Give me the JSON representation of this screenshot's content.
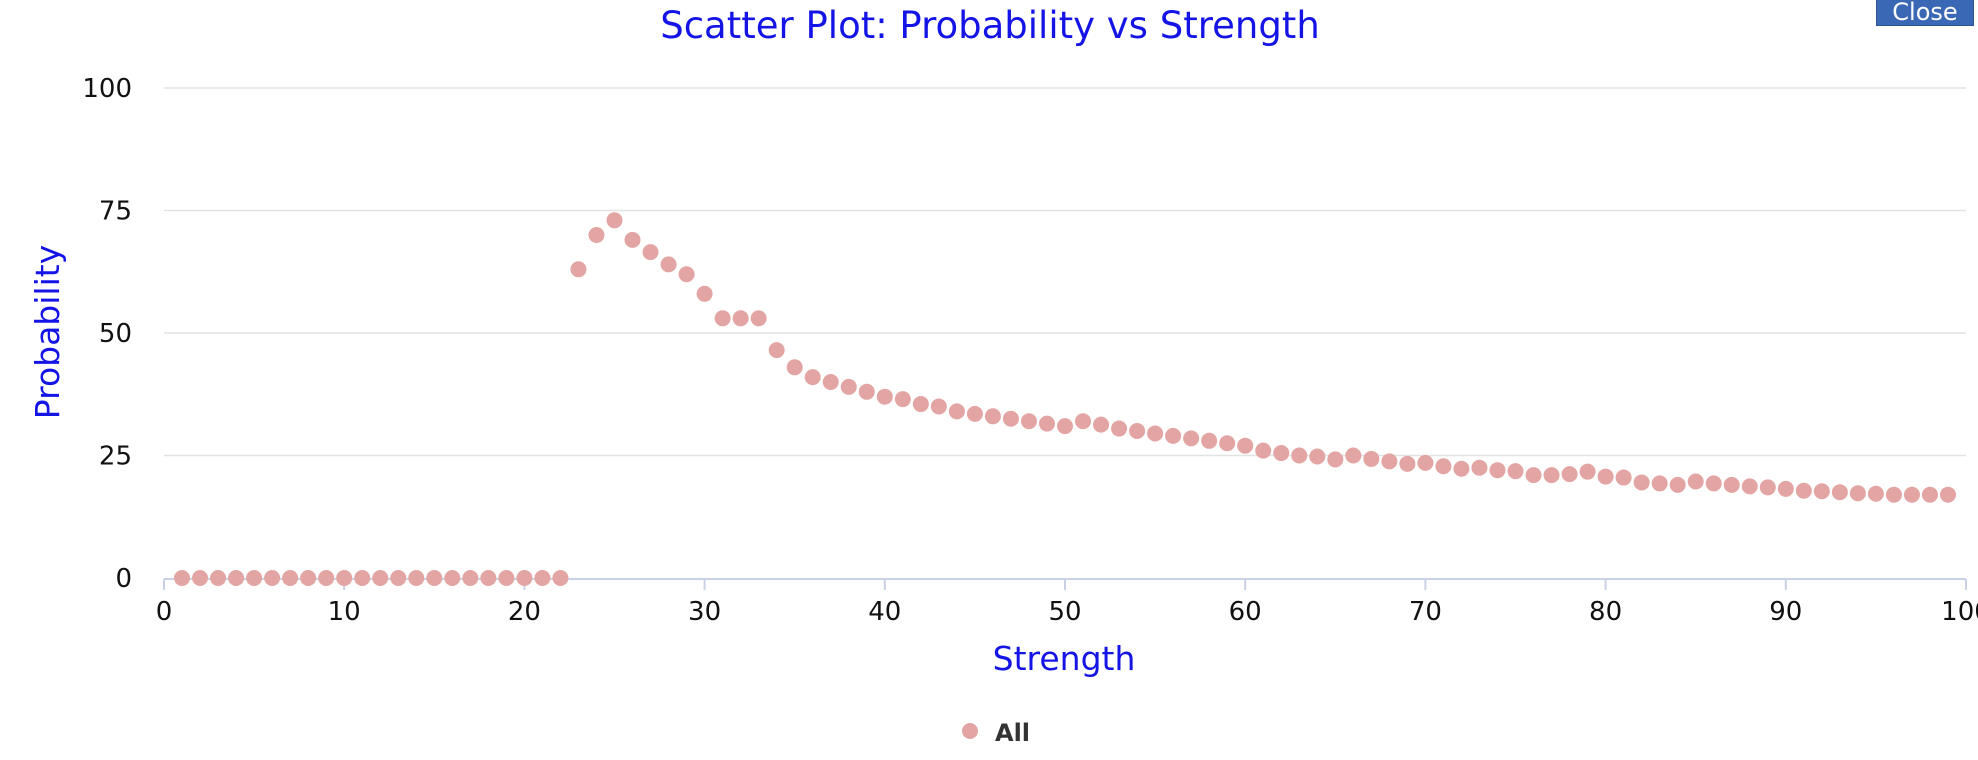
{
  "ui": {
    "close_label": "Close"
  },
  "colors": {
    "title": "#1414e6",
    "axis_title": "#1414e6",
    "marker": "#e3a5a3",
    "grid": "#e2e2e2",
    "axis_line": "#c9d1e6",
    "tick_text": "#111111",
    "legend_text": "#333333"
  },
  "chart_data": {
    "type": "scatter",
    "title": "Scatter Plot: Probability vs Strength",
    "xlabel": "Strength",
    "ylabel": "Probability",
    "xlim": [
      0,
      100
    ],
    "ylim": [
      0,
      100
    ],
    "x_ticks": [
      0,
      10,
      20,
      30,
      40,
      50,
      60,
      70,
      80,
      90,
      100
    ],
    "y_ticks": [
      0,
      25,
      50,
      75,
      100
    ],
    "grid": true,
    "legend": {
      "position": "bottom-center",
      "entries": [
        "All"
      ]
    },
    "series": [
      {
        "name": "All",
        "x": [
          1,
          2,
          3,
          4,
          5,
          6,
          7,
          8,
          9,
          10,
          11,
          12,
          13,
          14,
          15,
          16,
          17,
          18,
          19,
          20,
          21,
          22,
          23,
          24,
          25,
          26,
          27,
          28,
          29,
          30,
          31,
          32,
          33,
          34,
          35,
          36,
          37,
          38,
          39,
          40,
          41,
          42,
          43,
          44,
          45,
          46,
          47,
          48,
          49,
          50,
          51,
          52,
          53,
          54,
          55,
          56,
          57,
          58,
          59,
          60,
          61,
          62,
          63,
          64,
          65,
          66,
          67,
          68,
          69,
          70,
          71,
          72,
          73,
          74,
          75,
          76,
          77,
          78,
          79,
          80,
          81,
          82,
          83,
          84,
          85,
          86,
          87,
          88,
          89,
          90,
          91,
          92,
          93,
          94,
          95,
          96,
          97,
          98,
          99
        ],
        "y": [
          0,
          0,
          0,
          0,
          0,
          0,
          0,
          0,
          0,
          0,
          0,
          0,
          0,
          0,
          0,
          0,
          0,
          0,
          0,
          0,
          0,
          0,
          63,
          70,
          73,
          69,
          66.5,
          64,
          62,
          58,
          53,
          53,
          53,
          46.5,
          43,
          41,
          40,
          39,
          38,
          37,
          36.5,
          35.5,
          35,
          34,
          33.5,
          33,
          32.5,
          32,
          31.5,
          31,
          32,
          31.3,
          30.5,
          30,
          29.5,
          29,
          28.5,
          28,
          27.5,
          27,
          26,
          25.5,
          25,
          24.8,
          24.2,
          25,
          24.3,
          23.8,
          23.3,
          23.5,
          22.8,
          22.3,
          22.5,
          22,
          21.8,
          21,
          21,
          21.2,
          21.7,
          20.7,
          20.5,
          19.5,
          19.3,
          19,
          19.7,
          19.3,
          19,
          18.7,
          18.5,
          18.2,
          17.8,
          17.7,
          17.5,
          17.3,
          17.2,
          17,
          17,
          17,
          17
        ]
      }
    ]
  }
}
